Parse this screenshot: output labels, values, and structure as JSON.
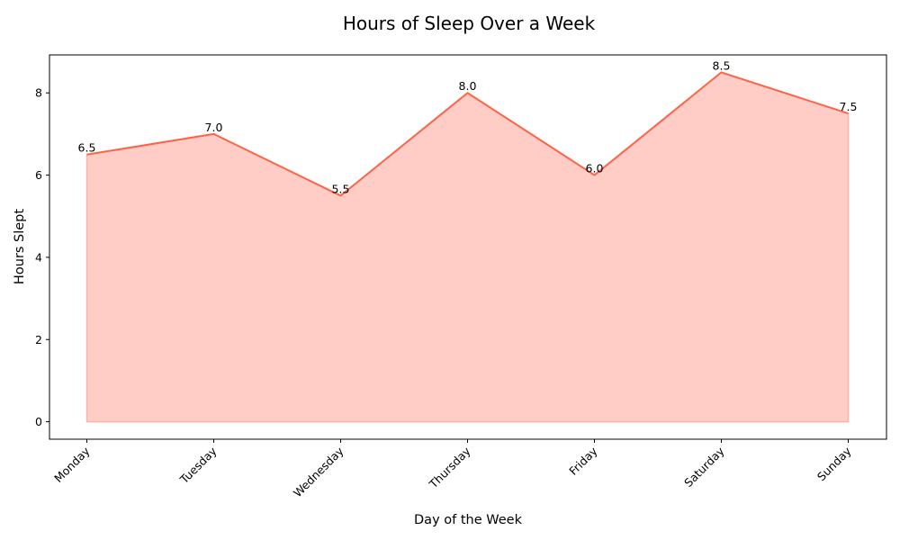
{
  "chart_data": {
    "type": "area",
    "title": "Hours of Sleep Over a Week",
    "xlabel": "Day of the Week",
    "ylabel": "Hours Slept",
    "categories": [
      "Monday",
      "Tuesday",
      "Wednesday",
      "Thursday",
      "Friday",
      "Saturday",
      "Sunday"
    ],
    "series": [
      {
        "values": [
          6.5,
          7.0,
          5.5,
          8.0,
          6.0,
          8.5,
          7.5
        ]
      }
    ],
    "data_labels": [
      "6.5",
      "7.0",
      "5.5",
      "8.0",
      "6.0",
      "8.5",
      "7.5"
    ],
    "yticks": [
      0,
      2,
      4,
      6,
      8
    ],
    "ylim": [
      -0.425,
      8.925
    ],
    "grid": false,
    "legend": "none",
    "colors": {
      "line": "#ff6347",
      "fill": "#ffcdc6"
    }
  }
}
